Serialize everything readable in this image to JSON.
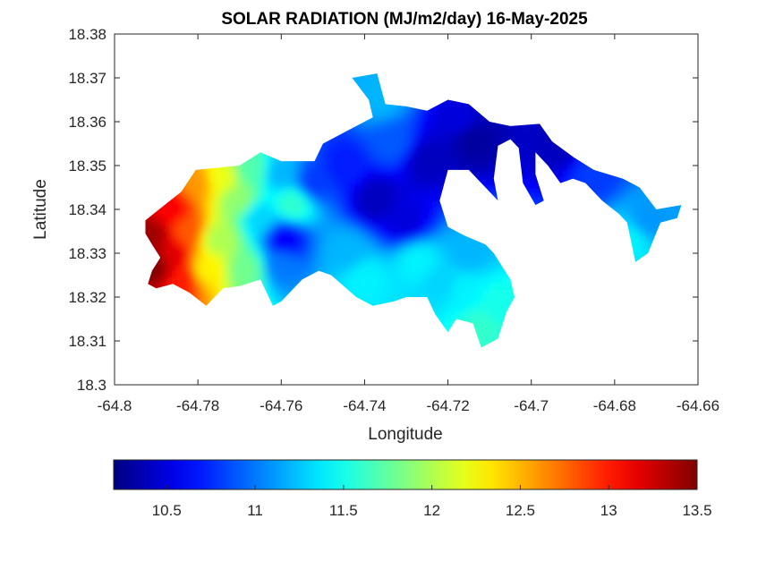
{
  "chart_data": {
    "type": "heatmap",
    "title": "SOLAR RADIATION (MJ/m2/day) 16-May-2025",
    "xlabel": "Longitude",
    "ylabel": "Latitude",
    "xlim": [
      -64.8,
      -64.66
    ],
    "ylim": [
      18.3,
      18.38
    ],
    "xticks": [
      -64.8,
      -64.78,
      -64.76,
      -64.74,
      -64.72,
      -64.7,
      -64.68,
      -64.66
    ],
    "xtick_labels": [
      "-64.8",
      "-64.78",
      "-64.76",
      "-64.74",
      "-64.72",
      "-64.7",
      "-64.68",
      "-64.66"
    ],
    "yticks": [
      18.3,
      18.31,
      18.32,
      18.33,
      18.34,
      18.35,
      18.36,
      18.37,
      18.38
    ],
    "ytick_labels": [
      "18.3",
      "18.31",
      "18.32",
      "18.33",
      "18.34",
      "18.35",
      "18.36",
      "18.37",
      "18.38"
    ],
    "grid": false,
    "colormap": "jet",
    "colorbar": {
      "placement": "bottom",
      "clim": [
        10.2,
        13.5
      ],
      "ticks": [
        10.5,
        11,
        11.5,
        12,
        12.5,
        13,
        13.5
      ],
      "tick_labels": [
        "10.5",
        "11",
        "11.5",
        "12",
        "12.5",
        "13",
        "13.5"
      ]
    },
    "island_outline": [
      [
        -64.7926,
        18.3375
      ],
      [
        -64.788,
        18.341
      ],
      [
        -64.784,
        18.344
      ],
      [
        -64.7805,
        18.349
      ],
      [
        -64.77,
        18.35
      ],
      [
        -64.765,
        18.353
      ],
      [
        -64.76,
        18.351
      ],
      [
        -64.752,
        18.351
      ],
      [
        -64.75,
        18.355
      ],
      [
        -64.744,
        18.358
      ],
      [
        -64.738,
        18.361
      ],
      [
        -64.739,
        18.365
      ],
      [
        -64.743,
        18.37
      ],
      [
        -64.737,
        18.371
      ],
      [
        -64.735,
        18.364
      ],
      [
        -64.73,
        18.3635
      ],
      [
        -64.725,
        18.3625
      ],
      [
        -64.72,
        18.365
      ],
      [
        -64.715,
        18.364
      ],
      [
        -64.71,
        18.36
      ],
      [
        -64.705,
        18.359
      ],
      [
        -64.698,
        18.3595
      ],
      [
        -64.695,
        18.3555
      ],
      [
        -64.69,
        18.352
      ],
      [
        -64.685,
        18.349
      ],
      [
        -64.678,
        18.347
      ],
      [
        -64.674,
        18.345
      ],
      [
        -64.672,
        18.3425
      ],
      [
        -64.67,
        18.34
      ],
      [
        -64.664,
        18.341
      ],
      [
        -64.665,
        18.338
      ],
      [
        -64.669,
        18.337
      ],
      [
        -64.672,
        18.33
      ],
      [
        -64.675,
        18.328
      ],
      [
        -64.677,
        18.337
      ],
      [
        -64.679,
        18.339
      ],
      [
        -64.683,
        18.342
      ],
      [
        -64.687,
        18.346
      ],
      [
        -64.69,
        18.347
      ],
      [
        -64.693,
        18.346
      ],
      [
        -64.696,
        18.35
      ],
      [
        -64.699,
        18.353
      ],
      [
        -64.699,
        18.348
      ],
      [
        -64.697,
        18.342
      ],
      [
        -64.699,
        18.341
      ],
      [
        -64.702,
        18.346
      ],
      [
        -64.703,
        18.354
      ],
      [
        -64.705,
        18.356
      ],
      [
        -64.708,
        18.3545
      ],
      [
        -64.709,
        18.347
      ],
      [
        -64.708,
        18.342
      ],
      [
        -64.711,
        18.345
      ],
      [
        -64.715,
        18.349
      ],
      [
        -64.72,
        18.349
      ],
      [
        -64.722,
        18.342
      ],
      [
        -64.72,
        18.336
      ],
      [
        -64.716,
        18.334
      ],
      [
        -64.711,
        18.332
      ],
      [
        -64.709,
        18.33
      ],
      [
        -64.705,
        18.324
      ],
      [
        -64.704,
        18.32
      ],
      [
        -64.706,
        18.3165
      ],
      [
        -64.708,
        18.3105
      ],
      [
        -64.712,
        18.3085
      ],
      [
        -64.714,
        18.314
      ],
      [
        -64.718,
        18.315
      ],
      [
        -64.72,
        18.312
      ],
      [
        -64.723,
        18.316
      ],
      [
        -64.725,
        18.32
      ],
      [
        -64.73,
        18.32
      ],
      [
        -64.733,
        18.319
      ],
      [
        -64.738,
        18.318
      ],
      [
        -64.742,
        18.32
      ],
      [
        -64.748,
        18.325
      ],
      [
        -64.751,
        18.326
      ],
      [
        -64.755,
        18.324
      ],
      [
        -64.76,
        18.319
      ],
      [
        -64.762,
        18.318
      ],
      [
        -64.765,
        18.324
      ],
      [
        -64.77,
        18.3225
      ],
      [
        -64.774,
        18.322
      ],
      [
        -64.778,
        18.318
      ],
      [
        -64.782,
        18.321
      ],
      [
        -64.786,
        18.323
      ],
      [
        -64.79,
        18.322
      ],
      [
        -64.792,
        18.323
      ],
      [
        -64.791,
        18.326
      ],
      [
        -64.789,
        18.329
      ],
      [
        -64.791,
        18.332
      ],
      [
        -64.7926,
        18.3345
      ]
    ],
    "field_samples": [
      {
        "lon": -64.79,
        "lat": 18.327,
        "value": 13.5
      },
      {
        "lon": -64.791,
        "lat": 18.334,
        "value": 13.4
      },
      {
        "lon": -64.786,
        "lat": 18.329,
        "value": 13.2
      },
      {
        "lon": -64.786,
        "lat": 18.34,
        "value": 13.1
      },
      {
        "lon": -64.783,
        "lat": 18.324,
        "value": 13.0
      },
      {
        "lon": -64.782,
        "lat": 18.335,
        "value": 12.8
      },
      {
        "lon": -64.78,
        "lat": 18.346,
        "value": 12.6
      },
      {
        "lon": -64.778,
        "lat": 18.326,
        "value": 12.3
      },
      {
        "lon": -64.774,
        "lat": 18.347,
        "value": 12.2
      },
      {
        "lon": -64.775,
        "lat": 18.333,
        "value": 12.0
      },
      {
        "lon": -64.77,
        "lat": 18.342,
        "value": 11.9
      },
      {
        "lon": -64.768,
        "lat": 18.326,
        "value": 11.8
      },
      {
        "lon": -64.767,
        "lat": 18.349,
        "value": 11.7
      },
      {
        "lon": -64.757,
        "lat": 18.341,
        "value": 11.6
      },
      {
        "lon": -64.765,
        "lat": 18.338,
        "value": 11.3
      },
      {
        "lon": -64.76,
        "lat": 18.327,
        "value": 11.0
      },
      {
        "lon": -64.759,
        "lat": 18.333,
        "value": 10.6
      },
      {
        "lon": -64.76,
        "lat": 18.348,
        "value": 11.2
      },
      {
        "lon": -64.752,
        "lat": 18.346,
        "value": 10.8
      },
      {
        "lon": -64.745,
        "lat": 18.35,
        "value": 10.7
      },
      {
        "lon": -64.737,
        "lat": 18.342,
        "value": 10.4
      },
      {
        "lon": -64.73,
        "lat": 18.337,
        "value": 10.5
      },
      {
        "lon": -64.725,
        "lat": 18.351,
        "value": 10.4
      },
      {
        "lon": -64.733,
        "lat": 18.355,
        "value": 10.9
      },
      {
        "lon": -64.736,
        "lat": 18.365,
        "value": 11.2
      },
      {
        "lon": -64.714,
        "lat": 18.356,
        "value": 10.3
      },
      {
        "lon": -64.717,
        "lat": 18.36,
        "value": 10.5
      },
      {
        "lon": -64.693,
        "lat": 18.354,
        "value": 10.4
      },
      {
        "lon": -64.685,
        "lat": 18.348,
        "value": 10.8
      },
      {
        "lon": -64.744,
        "lat": 18.33,
        "value": 11.2
      },
      {
        "lon": -64.74,
        "lat": 18.324,
        "value": 11.4
      },
      {
        "lon": -64.727,
        "lat": 18.328,
        "value": 11.4
      },
      {
        "lon": -64.721,
        "lat": 18.323,
        "value": 11.3
      },
      {
        "lon": -64.716,
        "lat": 18.321,
        "value": 11.4
      },
      {
        "lon": -64.712,
        "lat": 18.313,
        "value": 11.6
      },
      {
        "lon": -64.708,
        "lat": 18.318,
        "value": 11.5
      },
      {
        "lon": -64.715,
        "lat": 18.33,
        "value": 11.2
      },
      {
        "lon": -64.672,
        "lat": 18.337,
        "value": 11.1
      },
      {
        "lon": -64.676,
        "lat": 18.333,
        "value": 11.4
      }
    ]
  }
}
